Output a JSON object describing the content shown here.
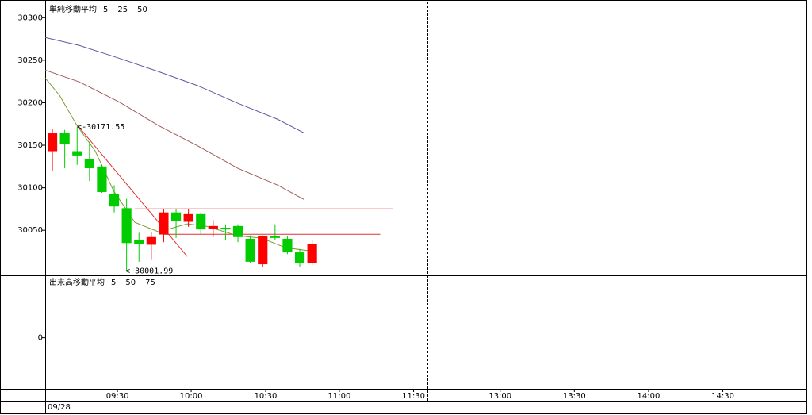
{
  "date": "09/28",
  "chart_data": [
    {
      "type": "candlestick",
      "legend_title": "単純移動平均",
      "ylim": [
        29997,
        30318
      ],
      "yticks": [
        30050,
        30100,
        30150,
        30200,
        30250,
        30300
      ],
      "xlim": [
        0.42,
        61.96
      ],
      "xticks": [
        {
          "value": 6.26,
          "label": "09:30"
        },
        {
          "value": 12.22,
          "label": "10:00"
        },
        {
          "value": 18.24,
          "label": "10:30"
        },
        {
          "value": 24.2,
          "label": "11:00"
        },
        {
          "value": 30.2,
          "label": "11:30"
        },
        {
          "value": 37.2,
          "label": "13:00"
        },
        {
          "value": 43.2,
          "label": "13:30"
        },
        {
          "value": 49.2,
          "label": "14:00"
        },
        {
          "value": 55.2,
          "label": "14:30"
        }
      ],
      "up_color": "#ff0000",
      "down_color": "#00cc00",
      "open": [
        30143,
        30164,
        30143,
        30134,
        30125,
        30093,
        30076,
        30039,
        30033,
        30045,
        30071,
        30060,
        30069,
        30052,
        30053,
        30055,
        30040,
        30010,
        30043,
        30040,
        30024,
        30011
      ],
      "high": [
        30169,
        30168,
        30171.55,
        30154,
        30127,
        30103,
        30087,
        30047,
        30048,
        30075,
        30075,
        30075,
        30071,
        30062,
        30057,
        30057,
        30044,
        30044,
        30057,
        30043,
        30028,
        30038
      ],
      "low": [
        30120,
        30123,
        30127,
        30108,
        30094,
        30071,
        30001.99,
        30013,
        30015,
        30036,
        30041,
        30054,
        30045,
        30042,
        30039,
        30036,
        30011,
        30007,
        30039,
        30022,
        30007,
        30009
      ],
      "close": [
        30164,
        30151,
        30138,
        30123,
        30095,
        30078,
        30035,
        30034,
        30042,
        30071,
        30061,
        30069,
        30051,
        30055,
        30051,
        30042,
        30013,
        30043,
        30041,
        30024,
        30011,
        30034
      ],
      "series": [
        {
          "name": "5",
          "color": "#7a9a30",
          "x": [
            0.42,
            1.58,
            2.99,
            4.46,
            5.94,
            7.67,
            9.59,
            11.9,
            13.44,
            16,
            17.92,
            19.85,
            21.83
          ],
          "values": [
            30229.1,
            30208.6,
            30173.1,
            30143.3,
            30096.6,
            30059.3,
            30048.1,
            30057.5,
            30054.7,
            30043.5,
            30040.7,
            30029.5,
            30025.7
          ]
        },
        {
          "name": "25",
          "color": "#a05a5a",
          "x": [
            0.42,
            3.18,
            6.38,
            9.59,
            12.79,
            16,
            19.2,
            21.32
          ],
          "values": [
            30238.4,
            30224.4,
            30201.1,
            30173.1,
            30148.9,
            30122.8,
            30103.2,
            30086.4
          ]
        },
        {
          "name": "50",
          "color": "#5a5aa0",
          "x": [
            0.42,
            3.18,
            6.38,
            9.59,
            12.79,
            16,
            19.2,
            21.32
          ],
          "values": [
            30276.7,
            30267.4,
            30252.4,
            30236.6,
            30219.8,
            30199.3,
            30180.6,
            30164.7
          ]
        }
      ],
      "drawn_lines": [
        {
          "color": "#e03030",
          "x": [
            7.67,
            28.5
          ],
          "values": [
            30075.2,
            30075.2
          ]
        },
        {
          "color": "#e03030",
          "x": [
            10.04,
            27.5
          ],
          "values": [
            30045.3,
            30045.3
          ]
        },
        {
          "color": "#e03030",
          "x": [
            2.99,
            11.9
          ],
          "values": [
            30174.1,
            30019.2
          ]
        }
      ],
      "annotations": [
        {
          "text": "<-30171.55",
          "color": "#e03030",
          "x": 2.99,
          "y": 30171.55
        },
        {
          "text": "<-30001.99",
          "color": "#20a020",
          "x": 6.9,
          "y": 30001.99
        }
      ]
    },
    {
      "type": "volume",
      "legend_title": "出来高移動平均",
      "ylim": [
        -0.9,
        1.1
      ],
      "yticks": [
        0
      ],
      "series": [
        {
          "name": "5",
          "color": "#3a9a9a"
        },
        {
          "name": "50",
          "color": "#6a6ab0"
        },
        {
          "name": "75",
          "color": "#40a040"
        }
      ]
    }
  ]
}
